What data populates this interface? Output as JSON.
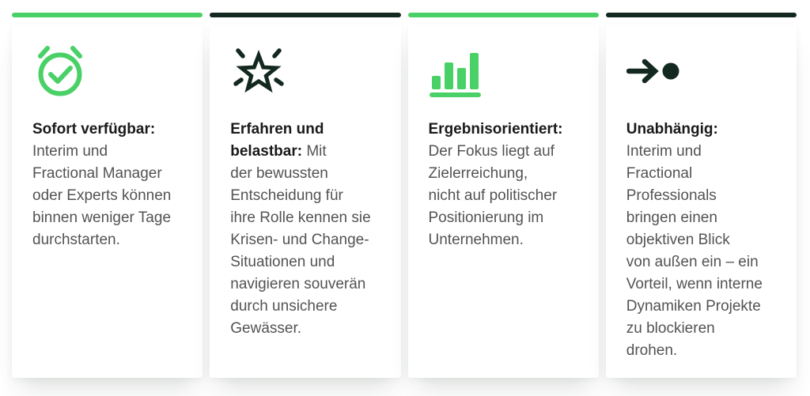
{
  "colors": {
    "green": "#49d167",
    "dark": "#13291f",
    "heading": "#1a1a1a",
    "body_text": "#535353",
    "page_bg": "#ffffff",
    "card_bg": "#ffffff"
  },
  "cards": [
    {
      "icon": "alarm-check-icon",
      "accent": "green",
      "icon_color": "green",
      "title": "Sofort verfügbar:",
      "body": "Interim und Fractional Manager oder Experts können binnen weniger Tage durchstarten.",
      "lines": [
        {
          "b": "Sofort verfügbar:"
        },
        {
          "t": "Interim und"
        },
        {
          "t": "Fractional Manager"
        },
        {
          "t": "oder Experts können"
        },
        {
          "t": "binnen weniger Tage"
        },
        {
          "t": "durchstarten."
        }
      ]
    },
    {
      "icon": "star-burst-icon",
      "accent": "dark",
      "icon_color": "dark",
      "title": "Erfahren und belastbar:",
      "body": "Mit der bewussten Entscheidung für ihre Rolle kennen sie Krisen- und Change-Situationen und navigieren souverän durch unsichere Gewässer.",
      "lines": [
        {
          "b": "Erfahren und"
        },
        {
          "b": "belastbar:",
          "t": " Mit"
        },
        {
          "t": "der bewussten"
        },
        {
          "t": "Entscheidung für"
        },
        {
          "t": "ihre Rolle kennen sie"
        },
        {
          "t": "Krisen- und Change-"
        },
        {
          "t": "Situationen und"
        },
        {
          "t": "navigieren souverän"
        },
        {
          "t": "durch unsichere"
        },
        {
          "t": "Gewässer."
        }
      ]
    },
    {
      "icon": "bar-chart-icon",
      "accent": "green",
      "icon_color": "green",
      "title": "Ergebnisorientiert:",
      "body": "Der Fokus liegt auf Zielerreichung, nicht auf politischer Positionierung im Unternehmen.",
      "lines": [
        {
          "b": "Ergebnisorientiert:"
        },
        {
          "t": "Der Fokus liegt auf"
        },
        {
          "t": "Zielerreichung,"
        },
        {
          "t": "nicht auf politischer"
        },
        {
          "t": "Positionierung im"
        },
        {
          "t": "Unternehmen."
        }
      ]
    },
    {
      "icon": "arrow-dot-icon",
      "accent": "dark",
      "icon_color": "dark",
      "title": "Unabhängig:",
      "body": "Interim und Fractional Professionals bringen einen objektiven Blick von außen ein – ein Vorteil, wenn interne Dynamiken Projekte zu blockieren drohen.",
      "lines": [
        {
          "b": "Unabhängig:"
        },
        {
          "t": "Interim und"
        },
        {
          "t": "Fractional"
        },
        {
          "t": "Professionals"
        },
        {
          "t": "bringen einen"
        },
        {
          "t": "objektiven Blick"
        },
        {
          "t": "von außen ein – ein"
        },
        {
          "t": "Vorteil, wenn interne"
        },
        {
          "t": "Dynamiken Projekte"
        },
        {
          "t": "zu blockieren"
        },
        {
          "t": "drohen."
        }
      ]
    }
  ]
}
